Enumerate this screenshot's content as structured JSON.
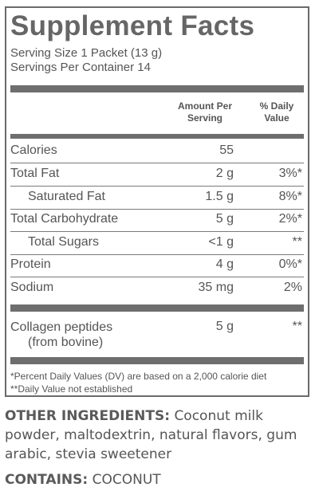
{
  "panel": {
    "title": "Supplement Facts",
    "serving_size": "Serving Size 1 Packet (13 g)",
    "servings_per_container": "Servings Per Container 14",
    "col_amount_line1": "Amount Per",
    "col_amount_line2": "Serving",
    "col_dv_line1": "% Daily",
    "col_dv_line2": "Value",
    "rows": [
      {
        "name": "Calories",
        "amount": "55",
        "dv": ""
      },
      {
        "name": "Total Fat",
        "amount": "2 g",
        "dv": "3%*"
      },
      {
        "name": "Saturated Fat",
        "amount": "1.5 g",
        "dv": "8%*"
      },
      {
        "name": "Total Carbohydrate",
        "amount": "5 g",
        "dv": "2%*"
      },
      {
        "name": "Total Sugars",
        "amount": "<1 g",
        "dv": "**"
      },
      {
        "name": "Protein",
        "amount": "4 g",
        "dv": "0%*"
      },
      {
        "name": "Sodium",
        "amount": "35 mg",
        "dv": "2%"
      }
    ],
    "collagen": {
      "name_line1": "Collagen peptides",
      "name_line2": "(from bovine)",
      "amount": "5 g",
      "dv": "**"
    },
    "footnote1": "*Percent Daily Values (DV) are based on a 2,000 calorie diet",
    "footnote2": "**Daily Value not established"
  },
  "ingredients": {
    "label": "OTHER INGREDIENTS:",
    "text": "Coconut milk powder, maltodextrin, natural flavors, gum arabic, stevia sweetener"
  },
  "contains": {
    "label": "CONTAINS:",
    "text": "COCONUT"
  }
}
